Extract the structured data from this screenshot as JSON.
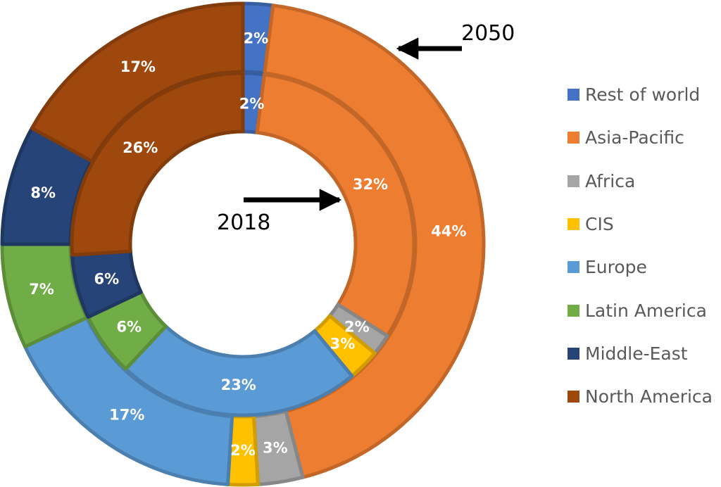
{
  "chart_data": {
    "type": "pie",
    "subtype": "nested-donut",
    "categories": [
      "Rest of world",
      "Asia-Pacific",
      "Africa",
      "CIS",
      "Europe",
      "Latin America",
      "Middle-East",
      "North America"
    ],
    "colors": [
      "#4472C4",
      "#ED7D31",
      "#A5A5A5",
      "#FFC000",
      "#5B9BD5",
      "#70AD47",
      "#264478",
      "#9E480E"
    ],
    "series": [
      {
        "name": "2018",
        "ring": "inner",
        "values": [
          2,
          32,
          2,
          3,
          23,
          6,
          6,
          26
        ],
        "labels": [
          "2%",
          "32%",
          "2%",
          "3%",
          "23%",
          "6%",
          "6%",
          "26%"
        ]
      },
      {
        "name": "2050",
        "ring": "outer",
        "values": [
          2,
          44,
          3,
          2,
          17,
          7,
          8,
          17
        ],
        "labels": [
          "2%",
          "44%",
          "3%",
          "2%",
          "17%",
          "7%",
          "8%",
          "17%"
        ]
      }
    ],
    "annotations": [
      {
        "text": "2050",
        "points_to": "outer ring"
      },
      {
        "text": "2018",
        "points_to": "inner ring"
      }
    ],
    "legend_position": "right"
  }
}
